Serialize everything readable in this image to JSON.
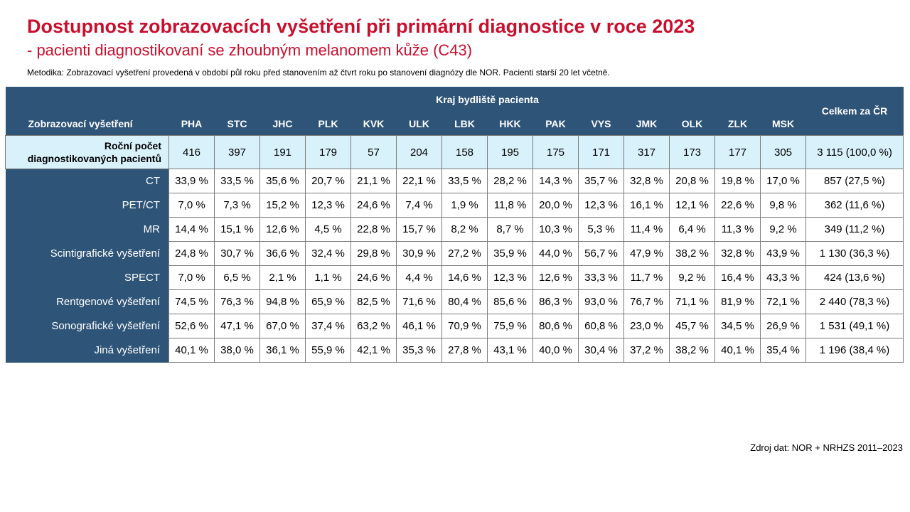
{
  "title": "Dostupnost zobrazovacích vyšetření při primární diagnostice v roce 2023",
  "subtitle": "- pacienti diagnostikovaní se zhoubným melanomem kůže (C43)",
  "methodology": "Metodika: Zobrazovací vyšetření provedená v období půl roku před stanovením až čtvrt roku po stanovení diagnózy dle NOR. Pacienti starší 20 let včetně.",
  "source": "Zdroj dat: NOR + NRHZS 2011–2023",
  "table": {
    "exam_header": "Zobrazovací vyšetření",
    "region_header": "Kraj bydliště pacienta",
    "total_header": "Celkem za ČR",
    "regions": [
      "PHA",
      "STC",
      "JHC",
      "PLK",
      "KVK",
      "ULK",
      "LBK",
      "HKK",
      "PAK",
      "VYS",
      "JMK",
      "OLK",
      "ZLK",
      "MSK"
    ],
    "count_row": {
      "label_line1": "Roční počet",
      "label_line2": "diagnostikovaných pacientů",
      "values": [
        "416",
        "397",
        "191",
        "179",
        "57",
        "204",
        "158",
        "195",
        "175",
        "171",
        "317",
        "173",
        "177",
        "305"
      ],
      "total": "3 115 (100,0 %)"
    },
    "rows": [
      {
        "label": "CT",
        "values": [
          "33,9 %",
          "33,5 %",
          "35,6 %",
          "20,7 %",
          "21,1 %",
          "22,1 %",
          "33,5 %",
          "28,2 %",
          "14,3 %",
          "35,7 %",
          "32,8 %",
          "20,8 %",
          "19,8 %",
          "17,0 %"
        ],
        "total": "857 (27,5 %)"
      },
      {
        "label": "PET/CT",
        "values": [
          "7,0 %",
          "7,3 %",
          "15,2 %",
          "12,3 %",
          "24,6 %",
          "7,4 %",
          "1,9 %",
          "11,8 %",
          "20,0 %",
          "12,3 %",
          "16,1 %",
          "12,1 %",
          "22,6 %",
          "9,8 %"
        ],
        "total": "362 (11,6 %)"
      },
      {
        "label": "MR",
        "values": [
          "14,4 %",
          "15,1 %",
          "12,6 %",
          "4,5 %",
          "22,8 %",
          "15,7 %",
          "8,2 %",
          "8,7 %",
          "10,3 %",
          "5,3 %",
          "11,4 %",
          "6,4 %",
          "11,3 %",
          "9,2 %"
        ],
        "total": "349 (11,2 %)"
      },
      {
        "label": "Scintigrafické vyšetření",
        "values": [
          "24,8 %",
          "30,7 %",
          "36,6 %",
          "32,4 %",
          "29,8 %",
          "30,9 %",
          "27,2 %",
          "35,9 %",
          "44,0 %",
          "56,7 %",
          "47,9 %",
          "38,2 %",
          "32,8 %",
          "43,9 %"
        ],
        "total": "1 130 (36,3 %)"
      },
      {
        "label": "SPECT",
        "values": [
          "7,0 %",
          "6,5 %",
          "2,1 %",
          "1,1 %",
          "24,6 %",
          "4,4 %",
          "14,6 %",
          "12,3 %",
          "12,6 %",
          "33,3 %",
          "11,7 %",
          "9,2 %",
          "16,4 %",
          "43,3 %"
        ],
        "total": "424 (13,6 %)"
      },
      {
        "label": "Rentgenové vyšetření",
        "values": [
          "74,5 %",
          "76,3 %",
          "94,8 %",
          "65,9 %",
          "82,5 %",
          "71,6 %",
          "80,4 %",
          "85,6 %",
          "86,3 %",
          "93,0 %",
          "76,7 %",
          "71,1 %",
          "81,9 %",
          "72,1 %"
        ],
        "total": "2 440 (78,3 %)"
      },
      {
        "label": "Sonografické vyšetření",
        "values": [
          "52,6 %",
          "47,1 %",
          "67,0 %",
          "37,4 %",
          "63,2 %",
          "46,1 %",
          "70,9 %",
          "75,9 %",
          "80,6 %",
          "60,8 %",
          "23,0 %",
          "45,7 %",
          "34,5 %",
          "26,9 %"
        ],
        "total": "1 531 (49,1 %)"
      },
      {
        "label": "Jiná vyšetření",
        "values": [
          "40,1 %",
          "38,0 %",
          "36,1 %",
          "55,9 %",
          "42,1 %",
          "35,3 %",
          "27,8 %",
          "43,1 %",
          "40,0 %",
          "30,4 %",
          "37,2 %",
          "38,2 %",
          "40,1 %",
          "35,4 %"
        ],
        "total": "1 196 (38,4 %)"
      }
    ]
  },
  "colors": {
    "title": "#c8102e",
    "header_bg": "#2e5478",
    "count_row_bg": "#d9f1fb"
  }
}
